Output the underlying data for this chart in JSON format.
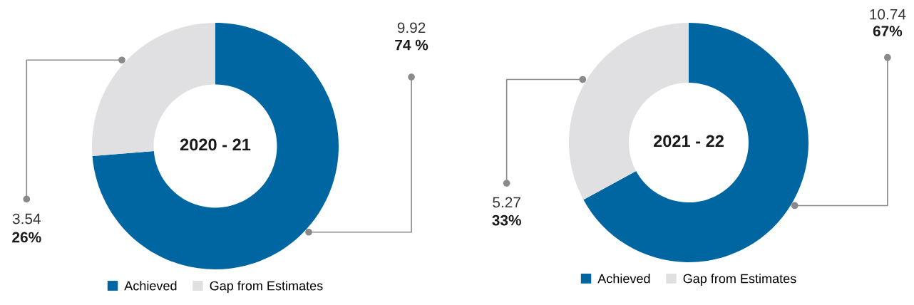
{
  "chart_data": [
    {
      "type": "donut",
      "title": "2020 - 21",
      "categories": [
        "Achieved",
        "Gap from Estimates"
      ],
      "values": [
        9.92,
        3.54
      ],
      "colors": [
        "#0066a1",
        "#e0e0e2"
      ],
      "data_labels": true,
      "legend": "bottom",
      "annotations": [
        {
          "text": "74 %",
          "x": "Achieved"
        },
        {
          "text": "26%",
          "x": "Gap from Estimates"
        }
      ]
    },
    {
      "type": "donut",
      "title": "2021 - 22",
      "categories": [
        "Achieved",
        "Gap from Estimates"
      ],
      "values": [
        10.74,
        5.27
      ],
      "colors": [
        "#0066a1",
        "#e0e0e2"
      ],
      "data_labels": true,
      "legend": "bottom",
      "annotations": [
        {
          "text": "67%",
          "x": "Achieved"
        },
        {
          "text": "33%",
          "x": "Gap from Estimates"
        }
      ]
    }
  ]
}
